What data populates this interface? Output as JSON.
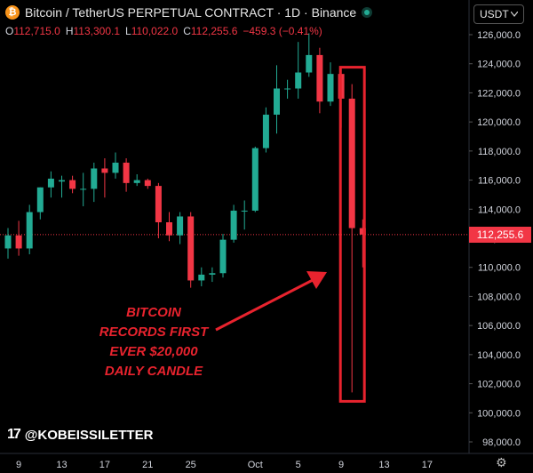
{
  "header": {
    "title": "Bitcoin / TetherUS PERPETUAL CONTRACT · 1D · Binance",
    "symbol_icon": "bitcoin-icon",
    "live_status": "market-open-dot"
  },
  "ohlc": {
    "o_key": "O",
    "o": "112,715.0",
    "h_key": "H",
    "h": "113,300.1",
    "l_key": "L",
    "l": "110,022.0",
    "c_key": "C",
    "c": "112,255.6",
    "change": "−459.3 (−0.41%)"
  },
  "currency_select": {
    "value": "USDT",
    "icon": "chevron-down-icon"
  },
  "price_scale": {
    "labels": [
      "126,000.0",
      "124,000.0",
      "122,000.0",
      "120,000.0",
      "118,000.0",
      "116,000.0",
      "114,000.0",
      "112,000.0",
      "110,000.0",
      "108,000.0",
      "106,000.0",
      "104,000.0",
      "102,000.0",
      "100,000.0",
      "98,000.0"
    ],
    "current_price": "112,255.6"
  },
  "time_scale": {
    "labels": [
      "9",
      "13",
      "17",
      "21",
      "25",
      "Oct",
      "5",
      "9",
      "13",
      "17"
    ]
  },
  "annotation": {
    "lines": [
      "BITCOIN",
      "RECORDS FIRST",
      "EVER $20,000",
      "DAILY CANDLE"
    ]
  },
  "branding": {
    "handle": "@KOBEISSILETTER",
    "logo": "tradingview-logo"
  },
  "colors": {
    "up": "#22ab94",
    "down": "#f23645",
    "highlight": "#e8232e",
    "background": "#000000"
  },
  "chart_data": {
    "type": "candlestick",
    "yrange": [
      97000,
      127000
    ],
    "candles": [
      {
        "date": "Sep 8",
        "o": 111300,
        "h": 112700,
        "l": 110600,
        "c": 112200
      },
      {
        "date": "Sep 9",
        "o": 112200,
        "h": 113200,
        "l": 110800,
        "c": 111300
      },
      {
        "date": "Sep 10",
        "o": 111300,
        "h": 114300,
        "l": 110900,
        "c": 113800
      },
      {
        "date": "Sep 11",
        "o": 113800,
        "h": 115500,
        "l": 113300,
        "c": 115500
      },
      {
        "date": "Sep 12",
        "o": 115500,
        "h": 116600,
        "l": 114800,
        "c": 116100
      },
      {
        "date": "Sep 13",
        "o": 115900,
        "h": 116300,
        "l": 114800,
        "c": 116000
      },
      {
        "date": "Sep 14",
        "o": 116000,
        "h": 116300,
        "l": 115100,
        "c": 115400
      },
      {
        "date": "Sep 15",
        "o": 115400,
        "h": 116500,
        "l": 114200,
        "c": 115400
      },
      {
        "date": "Sep 16",
        "o": 115400,
        "h": 117200,
        "l": 114500,
        "c": 116800
      },
      {
        "date": "Sep 17",
        "o": 116800,
        "h": 117500,
        "l": 114800,
        "c": 116500
      },
      {
        "date": "Sep 18",
        "o": 116500,
        "h": 117900,
        "l": 116100,
        "c": 117200
      },
      {
        "date": "Sep 19",
        "o": 117200,
        "h": 117500,
        "l": 115200,
        "c": 115800
      },
      {
        "date": "Sep 20",
        "o": 115800,
        "h": 116400,
        "l": 115600,
        "c": 116000
      },
      {
        "date": "Sep 21",
        "o": 116000,
        "h": 116100,
        "l": 115400,
        "c": 115600
      },
      {
        "date": "Sep 22",
        "o": 115600,
        "h": 115800,
        "l": 112000,
        "c": 113100
      },
      {
        "date": "Sep 23",
        "o": 113100,
        "h": 113800,
        "l": 111800,
        "c": 112200
      },
      {
        "date": "Sep 24",
        "o": 112200,
        "h": 113800,
        "l": 111600,
        "c": 113500
      },
      {
        "date": "Sep 25",
        "o": 113500,
        "h": 113800,
        "l": 108600,
        "c": 109100
      },
      {
        "date": "Sep 26",
        "o": 109100,
        "h": 110000,
        "l": 108700,
        "c": 109500
      },
      {
        "date": "Sep 27",
        "o": 109500,
        "h": 110000,
        "l": 109000,
        "c": 109600
      },
      {
        "date": "Sep 28",
        "o": 109600,
        "h": 112300,
        "l": 109300,
        "c": 111900
      },
      {
        "date": "Sep 29",
        "o": 111900,
        "h": 114300,
        "l": 111700,
        "c": 113900
      },
      {
        "date": "Sep 30",
        "o": 113900,
        "h": 114600,
        "l": 112600,
        "c": 113900
      },
      {
        "date": "Oct 1",
        "o": 113900,
        "h": 118300,
        "l": 113800,
        "c": 118200
      },
      {
        "date": "Oct 2",
        "o": 118200,
        "h": 121000,
        "l": 117900,
        "c": 120500
      },
      {
        "date": "Oct 3",
        "o": 120500,
        "h": 123900,
        "l": 119200,
        "c": 122300
      },
      {
        "date": "Oct 4",
        "o": 122300,
        "h": 122900,
        "l": 121600,
        "c": 122300
      },
      {
        "date": "Oct 5",
        "o": 122300,
        "h": 125500,
        "l": 121600,
        "c": 123400
      },
      {
        "date": "Oct 6",
        "o": 123400,
        "h": 126100,
        "l": 123100,
        "c": 124600
      },
      {
        "date": "Oct 7",
        "o": 124600,
        "h": 125100,
        "l": 120600,
        "c": 121400
      },
      {
        "date": "Oct 8",
        "o": 121400,
        "h": 124100,
        "l": 121100,
        "c": 123300
      },
      {
        "date": "Oct 9",
        "o": 123300,
        "h": 123800,
        "l": 119600,
        "c": 121600
      },
      {
        "date": "Oct 10",
        "o": 121600,
        "h": 122600,
        "l": 101400,
        "c": 112700
      },
      {
        "date": "Oct 11",
        "o": 112700,
        "h": 113300,
        "l": 110000,
        "c": 112256
      }
    ],
    "highlighted_candle": "Oct 10"
  }
}
